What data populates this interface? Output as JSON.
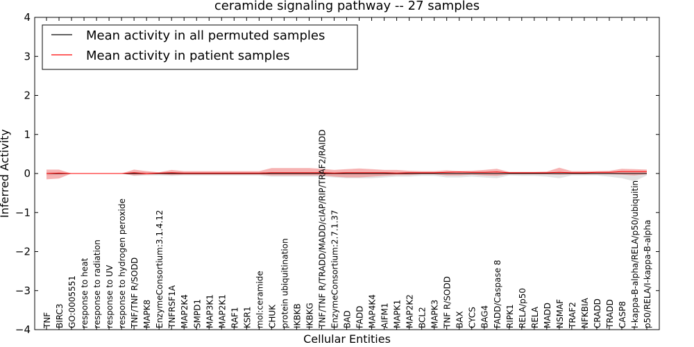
{
  "chart_data": {
    "type": "line",
    "title": "ceramide signaling pathway -- 27 samples",
    "xlabel": "Cellular Entities",
    "ylabel": "Inferred Activity",
    "ylim": [
      -4,
      4
    ],
    "yticks": [
      {
        "value": 4,
        "label": "4"
      },
      {
        "value": 3,
        "label": "3"
      },
      {
        "value": 2,
        "label": "2"
      },
      {
        "value": 1,
        "label": "1"
      },
      {
        "value": 0,
        "label": "0"
      },
      {
        "value": -1,
        "label": "−1"
      },
      {
        "value": -2,
        "label": "−2"
      },
      {
        "value": -3,
        "label": "−3"
      },
      {
        "value": -4,
        "label": "−4"
      }
    ],
    "legend_position": "top-left",
    "categories": [
      "TNF",
      "BIRC3",
      "GO:0005551",
      "response to heat",
      "response to radiation",
      "response to UV",
      "response to hydrogen peroxide",
      "TNF/TNF R/SODD",
      "MAPK8",
      "EnzymeConsortium:3.1.4.12",
      "TNFRSF1A",
      "MAP2K4",
      "SMPD1",
      "MAP3K1",
      "MAP2K1",
      "RAF1",
      "KSR1",
      "mol:ceramide",
      "CHUK",
      "protein ubiquitination",
      "IKBKB",
      "IKBKG",
      "TNF/TNF R/TRADD/MADD/cIAP/RIP/TRAF2/RAIDD",
      "EnzymeConsortium:2.7.1.37",
      "BAD",
      "FADD",
      "MAP4K4",
      "AIFM1",
      "MAPK1",
      "MAP2K2",
      "BCL2",
      "MAPK3",
      "TNF R/SODD",
      "BAX",
      "CYCS",
      "BAG4",
      "FADD/Caspase 8",
      "RIPK1",
      "RELA/p50",
      "RELA",
      "MADD",
      "NSMAF",
      "TRAF2",
      "NFKBIA",
      "CRADD",
      "TRADD",
      "CASP8",
      "I-kappa-B-alpha/RELA/p50/ubiquitin",
      "p50/RELA/I-kappa-B-alpha"
    ],
    "series": [
      {
        "name": "Mean activity in all permuted samples",
        "color": "#000000",
        "band_color": "#c0c0c0",
        "values": [
          0.0,
          0.0,
          0.0,
          0.0,
          0.0,
          0.0,
          0.0,
          0.0,
          0.0,
          0.0,
          0.0,
          0.0,
          0.0,
          0.0,
          0.0,
          0.0,
          0.0,
          0.0,
          0.0,
          0.0,
          0.0,
          0.0,
          0.0,
          0.0,
          0.0,
          0.0,
          0.0,
          0.0,
          0.0,
          0.0,
          0.0,
          0.0,
          0.0,
          0.0,
          0.0,
          0.0,
          0.0,
          0.0,
          0.0,
          0.0,
          0.0,
          0.0,
          0.0,
          0.0,
          0.0,
          0.0,
          0.0,
          0.0,
          0.0
        ],
        "upper": [
          0.03,
          0.02,
          0.0,
          0.0,
          0.0,
          0.0,
          0.0,
          0.03,
          0.03,
          0.03,
          0.03,
          0.03,
          0.03,
          0.03,
          0.03,
          0.03,
          0.03,
          0.03,
          0.03,
          0.03,
          0.03,
          0.03,
          0.03,
          0.03,
          0.03,
          0.03,
          0.03,
          0.03,
          0.03,
          0.03,
          0.03,
          0.03,
          0.03,
          0.03,
          0.03,
          0.03,
          0.03,
          0.03,
          0.03,
          0.03,
          0.03,
          0.03,
          0.03,
          0.03,
          0.03,
          0.03,
          0.03,
          0.03,
          0.03
        ],
        "lower": [
          -0.05,
          -0.03,
          0.0,
          0.0,
          0.0,
          0.0,
          0.0,
          -0.06,
          -0.05,
          -0.05,
          -0.06,
          -0.05,
          -0.05,
          -0.05,
          -0.05,
          -0.05,
          -0.05,
          -0.05,
          -0.08,
          -0.08,
          -0.08,
          -0.08,
          -0.08,
          -0.1,
          -0.12,
          -0.12,
          -0.12,
          -0.1,
          -0.08,
          -0.08,
          -0.06,
          -0.06,
          -0.1,
          -0.1,
          -0.08,
          -0.1,
          -0.12,
          -0.05,
          -0.06,
          -0.06,
          -0.08,
          -0.12,
          -0.05,
          -0.05,
          -0.05,
          -0.08,
          -0.12,
          -0.2,
          -0.05
        ]
      },
      {
        "name": "Mean activity in patient samples",
        "color": "#ff0000",
        "band_color": "#f08080",
        "values": [
          0.0,
          0.01,
          0.0,
          0.0,
          0.0,
          0.0,
          0.0,
          0.02,
          0.0,
          0.01,
          0.02,
          0.01,
          0.01,
          0.01,
          0.01,
          0.01,
          0.01,
          0.01,
          0.02,
          0.02,
          0.02,
          0.02,
          0.02,
          0.01,
          0.02,
          0.02,
          0.02,
          0.02,
          0.01,
          0.02,
          0.02,
          0.02,
          0.03,
          0.04,
          0.03,
          0.03,
          0.04,
          0.02,
          0.02,
          0.02,
          0.02,
          0.03,
          0.02,
          0.02,
          0.03,
          0.03,
          0.05,
          0.05,
          0.05
        ],
        "upper": [
          0.1,
          0.1,
          0.0,
          0.0,
          0.0,
          0.0,
          0.0,
          0.1,
          0.06,
          0.03,
          0.09,
          0.06,
          0.06,
          0.06,
          0.06,
          0.06,
          0.06,
          0.06,
          0.14,
          0.14,
          0.14,
          0.14,
          0.12,
          0.09,
          0.11,
          0.13,
          0.11,
          0.09,
          0.09,
          0.07,
          0.06,
          0.06,
          0.08,
          0.06,
          0.07,
          0.09,
          0.12,
          0.04,
          0.04,
          0.04,
          0.05,
          0.15,
          0.06,
          0.06,
          0.06,
          0.07,
          0.12,
          0.11,
          0.1
        ],
        "lower": [
          -0.15,
          -0.13,
          0.0,
          0.0,
          0.0,
          0.0,
          0.0,
          -0.05,
          -0.03,
          -0.02,
          -0.04,
          -0.03,
          -0.03,
          -0.03,
          -0.03,
          -0.03,
          -0.03,
          -0.03,
          -0.05,
          -0.05,
          -0.05,
          -0.05,
          -0.05,
          -0.08,
          -0.1,
          -0.1,
          -0.08,
          -0.06,
          -0.04,
          -0.04,
          -0.02,
          -0.02,
          -0.05,
          -0.05,
          -0.03,
          -0.05,
          -0.06,
          -0.02,
          -0.02,
          -0.02,
          -0.02,
          -0.03,
          -0.02,
          -0.02,
          -0.02,
          -0.02,
          -0.03,
          -0.05,
          -0.02
        ]
      }
    ]
  }
}
